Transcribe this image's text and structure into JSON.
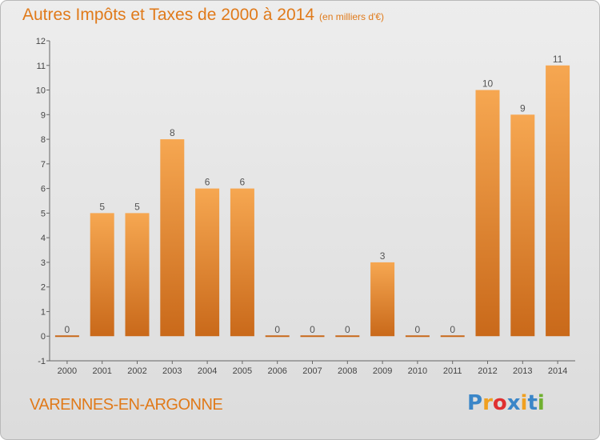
{
  "header": {
    "title": "Autres Impôts et Taxes de 2000 à 2014",
    "unit": "(en milliers d'€)"
  },
  "commune": "VARENNES-EN-ARGONNE",
  "logo": {
    "letters": [
      "P",
      "r",
      "o",
      "x",
      "i",
      "t",
      "i"
    ],
    "colors": [
      "#3a86c8",
      "#f0a020",
      "#e03030",
      "#3a86c8",
      "#f0a020",
      "#3a86c8",
      "#70b030"
    ]
  },
  "colors": {
    "bar_light": "#f6a751",
    "bar_dark": "#c9691a",
    "accent": "#e07a1a"
  },
  "chart_data": {
    "type": "bar",
    "categories": [
      "2000",
      "2001",
      "2002",
      "2003",
      "2004",
      "2005",
      "2006",
      "2007",
      "2008",
      "2009",
      "2010",
      "2011",
      "2012",
      "2013",
      "2014"
    ],
    "values": [
      0,
      5,
      5,
      8,
      6,
      6,
      0,
      0,
      0,
      3,
      0,
      0,
      10,
      9,
      11
    ],
    "ylim": [
      -1,
      12
    ],
    "yticks": [
      -1,
      0,
      1,
      2,
      3,
      4,
      5,
      6,
      7,
      8,
      9,
      10,
      11,
      12
    ],
    "grid": false
  }
}
